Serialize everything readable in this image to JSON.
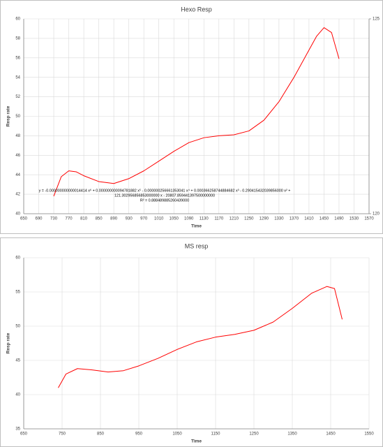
{
  "chart_data": [
    {
      "type": "line",
      "title": "Hexo Resp",
      "x_label": "Time",
      "y_label": "Resp rate",
      "annotations": [
        "y = -0.000000000000014414 x⁶ + 0.000000000094781882 x⁵ - 0.000000256661353041 x⁴ + 0.000366258744884682 x³ - 0.290415432039856000 x² +",
        "121.302956856853000000 x - 20807.859441397500000000",
        "R² = 0.888489885260439000"
      ],
      "x": [
        730,
        750,
        770,
        790,
        810,
        850,
        890,
        930,
        970,
        1010,
        1050,
        1090,
        1130,
        1170,
        1210,
        1250,
        1290,
        1330,
        1370,
        1410,
        1430,
        1450,
        1470,
        1490
      ],
      "series": [
        {
          "name": "Resp rate",
          "color": "#ff0000",
          "values": [
            41.8,
            43.8,
            44.4,
            44.3,
            43.9,
            43.3,
            43.1,
            43.6,
            44.4,
            45.4,
            46.4,
            47.3,
            47.8,
            48.0,
            48.1,
            48.5,
            49.6,
            51.5,
            54.0,
            56.8,
            58.2,
            59.1,
            58.6,
            55.9
          ]
        }
      ],
      "xlim": [
        650,
        1570
      ],
      "xticks": [
        650,
        690,
        730,
        770,
        810,
        850,
        890,
        930,
        970,
        1010,
        1050,
        1090,
        1130,
        1170,
        1210,
        1250,
        1290,
        1330,
        1370,
        1410,
        1450,
        1490,
        1530,
        1570
      ],
      "ylim": [
        40,
        60
      ],
      "yticks": [
        40,
        42,
        44,
        46,
        48,
        50,
        52,
        54,
        56,
        58,
        60
      ],
      "y2lim": [
        120,
        125
      ],
      "y2ticks": [
        120,
        125
      ],
      "grid": true
    },
    {
      "type": "line",
      "title": "MS resp",
      "x_label": "Time",
      "y_label": "Resp rate",
      "x": [
        740,
        760,
        790,
        830,
        870,
        910,
        950,
        1000,
        1050,
        1100,
        1150,
        1200,
        1250,
        1300,
        1350,
        1400,
        1440,
        1460,
        1480
      ],
      "series": [
        {
          "name": "Resp rate",
          "color": "#ff0000",
          "values": [
            41.0,
            43.0,
            43.8,
            43.6,
            43.3,
            43.5,
            44.2,
            45.3,
            46.6,
            47.7,
            48.4,
            48.8,
            49.4,
            50.6,
            52.6,
            54.8,
            55.8,
            55.5,
            51.0
          ]
        }
      ],
      "xlim": [
        650,
        1550
      ],
      "xticks": [
        650,
        750,
        850,
        950,
        1050,
        1150,
        1250,
        1350,
        1450,
        1550
      ],
      "ylim": [
        35,
        60
      ],
      "yticks": [
        35,
        40,
        45,
        50,
        55,
        60
      ],
      "grid": true
    }
  ]
}
